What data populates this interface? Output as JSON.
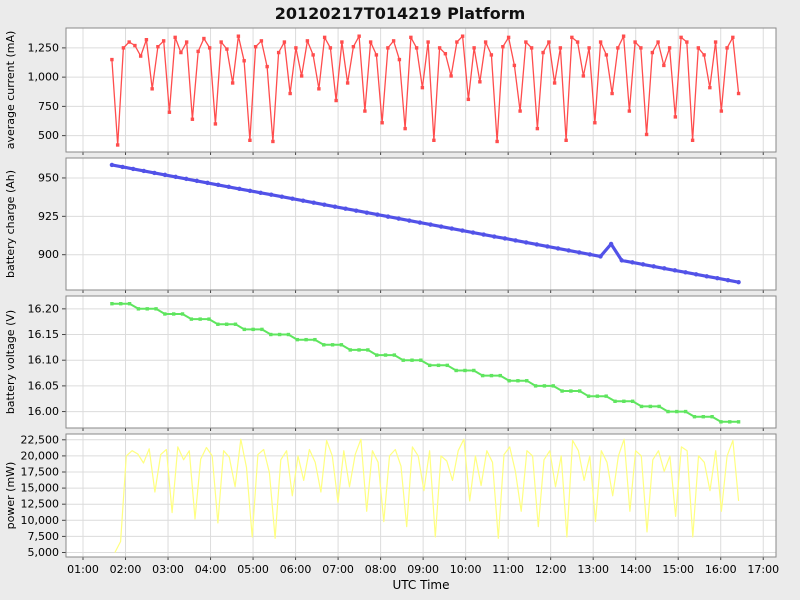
{
  "title": "20120217T014219 Platform",
  "axes": {
    "xlabel": "UTC Time",
    "xlim": [
      0.6,
      17.3
    ],
    "x_ticks": {
      "positions": [
        1,
        2,
        3,
        4,
        5,
        6,
        7,
        8,
        9,
        10,
        11,
        12,
        13,
        14,
        15,
        16,
        17
      ],
      "labels": [
        "01:00",
        "02:00",
        "03:00",
        "04:00",
        "05:00",
        "06:00",
        "07:00",
        "08:00",
        "09:00",
        "10:00",
        "11:00",
        "12:00",
        "13:00",
        "14:00",
        "15:00",
        "16:00",
        "17:00"
      ]
    }
  },
  "colors": {
    "figure_bg": "#ebebeb",
    "plot_bg": "#ffffff",
    "grid": "#dcdcdc",
    "spine": "#8a8a8a",
    "tick": "#444444"
  },
  "chart_data": [
    {
      "type": "line",
      "name": "average-current",
      "ylabel": "average current (mA)",
      "color": "#ff4d4d",
      "marker": "square",
      "line_width": 1.3,
      "x_start": 1.68,
      "x_end": 16.42,
      "ylim": [
        360,
        1420
      ],
      "yticks": [
        500,
        750,
        1000,
        1250
      ],
      "ytick_labels": [
        "500",
        "750",
        "1,000",
        "1,250"
      ],
      "values": [
        1150,
        420,
        1250,
        1300,
        1270,
        1180,
        1320,
        900,
        1260,
        1310,
        700,
        1340,
        1210,
        1300,
        640,
        1220,
        1330,
        1250,
        600,
        1300,
        1240,
        950,
        1350,
        1140,
        460,
        1260,
        1310,
        1090,
        450,
        1210,
        1300,
        860,
        1250,
        1010,
        1310,
        1190,
        900,
        1340,
        1250,
        800,
        1300,
        950,
        1260,
        1350,
        710,
        1300,
        1190,
        610,
        1250,
        1310,
        1150,
        560,
        1340,
        1250,
        910,
        1300,
        460,
        1250,
        1200,
        1010,
        1300,
        1350,
        810,
        1250,
        960,
        1300,
        1190,
        450,
        1260,
        1340,
        1100,
        710,
        1300,
        1250,
        560,
        1210,
        1300,
        950,
        1250,
        460,
        1340,
        1300,
        1010,
        1250,
        610,
        1300,
        1190,
        860,
        1250,
        1350,
        710,
        1300,
        1250,
        510,
        1210,
        1300,
        1100,
        1250,
        660,
        1340,
        1300,
        460,
        1250,
        1190,
        910,
        1300,
        710,
        1250,
        1340,
        860
      ]
    },
    {
      "type": "line",
      "name": "battery-charge",
      "ylabel": "battery charge (Ah)",
      "color": "#5252e8",
      "marker": "circle",
      "line_width": 3.2,
      "x_start": 1.68,
      "x_end": 16.42,
      "ylim": [
        877,
        963
      ],
      "yticks": [
        900,
        925,
        950
      ],
      "ytick_labels": [
        "900",
        "925",
        "950"
      ],
      "values": [
        958.5,
        957.2,
        955.9,
        954.6,
        953.3,
        952.0,
        950.7,
        949.4,
        948.1,
        946.8,
        945.5,
        944.2,
        942.9,
        941.6,
        940.3,
        939.1,
        937.8,
        936.5,
        935.2,
        933.9,
        932.6,
        931.3,
        930.0,
        928.7,
        927.4,
        926.1,
        924.8,
        923.5,
        922.2,
        920.9,
        919.6,
        918.3,
        917.0,
        915.7,
        914.4,
        913.1,
        911.8,
        910.6,
        909.3,
        908.0,
        906.7,
        905.4,
        904.1,
        902.8,
        901.5,
        900.2,
        898.9,
        907.0,
        896.3,
        895.0,
        893.7,
        892.4,
        891.1,
        889.8,
        888.5,
        887.2,
        885.9,
        884.7,
        883.4,
        882.1
      ]
    },
    {
      "type": "line",
      "name": "battery-voltage",
      "ylabel": "battery voltage (V)",
      "color": "#5fe55f",
      "marker": "square",
      "line_width": 2.0,
      "x_start": 1.68,
      "x_end": 16.42,
      "ylim": [
        15.968,
        16.225
      ],
      "yticks": [
        16.0,
        16.05,
        16.1,
        16.15,
        16.2
      ],
      "ytick_labels": [
        "16.00",
        "16.05",
        "16.10",
        "16.15",
        "16.20"
      ],
      "values": [
        16.21,
        16.21,
        16.21,
        16.2,
        16.2,
        16.2,
        16.19,
        16.19,
        16.19,
        16.18,
        16.18,
        16.18,
        16.17,
        16.17,
        16.17,
        16.16,
        16.16,
        16.16,
        16.15,
        16.15,
        16.15,
        16.14,
        16.14,
        16.14,
        16.13,
        16.13,
        16.13,
        16.12,
        16.12,
        16.12,
        16.11,
        16.11,
        16.11,
        16.1,
        16.1,
        16.1,
        16.09,
        16.09,
        16.09,
        16.08,
        16.08,
        16.08,
        16.07,
        16.07,
        16.07,
        16.06,
        16.06,
        16.06,
        16.05,
        16.05,
        16.05,
        16.04,
        16.04,
        16.04,
        16.03,
        16.03,
        16.03,
        16.02,
        16.02,
        16.02,
        16.01,
        16.01,
        16.01,
        16.0,
        16.0,
        16.0,
        15.99,
        15.99,
        15.99,
        15.98,
        15.98,
        15.98
      ]
    },
    {
      "type": "line",
      "name": "power",
      "ylabel": "power (mW)",
      "color": "#ffff80",
      "marker": "none",
      "line_width": 1.2,
      "x_start": 1.75,
      "x_end": 16.42,
      "ylim": [
        4300,
        23400
      ],
      "yticks": [
        5000,
        7500,
        10000,
        12500,
        15000,
        17500,
        20000,
        22500
      ],
      "ytick_labels": [
        "5,000",
        "7,500",
        "10,000",
        "12,500",
        "15,000",
        "17,500",
        "20,000",
        "22,500"
      ],
      "values": [
        5000,
        6700,
        20000,
        20800,
        20300,
        18900,
        21100,
        14400,
        20200,
        21000,
        11200,
        21400,
        19400,
        20800,
        10200,
        19500,
        21300,
        20000,
        9600,
        20800,
        19800,
        15200,
        22600,
        18200,
        7400,
        20200,
        21000,
        17400,
        7200,
        19400,
        20800,
        13800,
        20000,
        16200,
        21000,
        19000,
        14400,
        22400,
        20000,
        12800,
        20800,
        15200,
        20200,
        22600,
        11400,
        20800,
        19000,
        9800,
        20000,
        21000,
        18400,
        9000,
        21400,
        20000,
        14600,
        20800,
        7400,
        20000,
        19200,
        16200,
        20800,
        22600,
        13000,
        20000,
        15400,
        20800,
        19000,
        7200,
        20200,
        21400,
        17600,
        11400,
        20800,
        20000,
        9000,
        19400,
        20800,
        15200,
        20000,
        7400,
        22400,
        20800,
        16200,
        20000,
        9800,
        20800,
        19000,
        13800,
        20000,
        22600,
        11400,
        20800,
        20000,
        8200,
        19400,
        20800,
        17600,
        20000,
        10600,
        21400,
        20800,
        7400,
        20000,
        19000,
        14600,
        20800,
        11400,
        20000,
        22400,
        13000
      ]
    }
  ]
}
